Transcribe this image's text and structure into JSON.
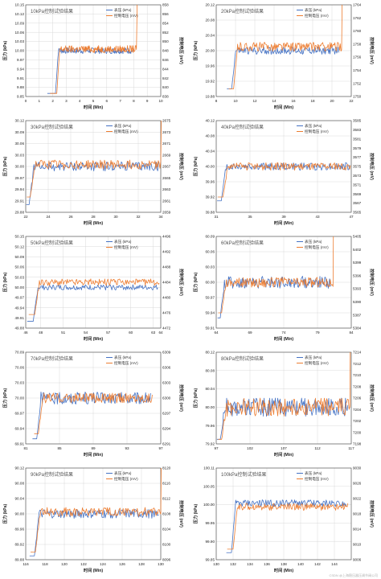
{
  "colors": {
    "pressure": "#4472C4",
    "voltage": "#ED7D31",
    "grid": "#d9d9d9",
    "axis": "#444444"
  },
  "watermark": "CSDN @上海稳压器压调节阀公司",
  "chart_data": [
    {
      "type": "line",
      "title": "10kPa控制试验结果",
      "xlabel": "时间 (Min)",
      "ylabel": "压力 (kPa)",
      "y2label": "控制电压 (mV)",
      "xlim": [
        0,
        10
      ],
      "ylim": [
        9.85,
        10.15
      ],
      "y2lim": [
        838,
        858
      ],
      "xticks": [
        0,
        1,
        2,
        3,
        4,
        5,
        6,
        7,
        8,
        9,
        10
      ],
      "yticks": [
        "9.85",
        "9.88",
        "9.91",
        "9.94",
        "9.97",
        "10.00",
        "10.03",
        "10.06",
        "10.09",
        "10.12",
        "10.15"
      ],
      "y2ticks": [
        "838",
        "840",
        "842",
        "844",
        "846",
        "848",
        "850",
        "852",
        "854",
        "856",
        "858"
      ],
      "legend": [
        "表压 (kPa)",
        "控制电压 (mV)"
      ],
      "grid": true,
      "series": [
        {
          "name": "表压 (kPa)",
          "start": [
            1.6,
            9.86
          ],
          "settle": [
            2.2,
            10.0
          ],
          "end": 8.0,
          "level": 10.0,
          "noise": 0.01
        },
        {
          "name": "控制电压 (mV)",
          "start": [
            1.8,
            9.86
          ],
          "settle": [
            2.3,
            10.0
          ],
          "end": 8.2,
          "level": 10.005,
          "noise": 0.012,
          "spike": true
        }
      ]
    },
    {
      "type": "line",
      "title": "20kPa控制试验结果",
      "xlabel": "时间 (Min)",
      "ylabel": "压力 (kPa)",
      "y2label": "控制电压 (mV)",
      "xlim": [
        8,
        22
      ],
      "ylim": [
        19.88,
        20.12
      ],
      "y2lim": [
        1750,
        1764
      ],
      "xticks": [
        8,
        10,
        12,
        14,
        16,
        18,
        20,
        22
      ],
      "yticks": [
        "19.88",
        "19.92",
        "19.96",
        "20.00",
        "20.04",
        "20.08",
        "20.12"
      ],
      "y2ticks": [
        "1750",
        "1752",
        "1754",
        "1756",
        "1758",
        "1760",
        "1762",
        "1764"
      ],
      "legend": [
        "表压 (kPa)",
        "控制电压 (mV)"
      ],
      "grid": true,
      "series": [
        {
          "name": "表压 (kPa)",
          "start": [
            9.1,
            19.9
          ],
          "settle": [
            9.6,
            20.0
          ],
          "end": 20.7,
          "level": 20.0,
          "noise": 0.01
        },
        {
          "name": "控制电压 (mV)",
          "start": [
            9.3,
            19.9
          ],
          "settle": [
            9.8,
            20.0
          ],
          "end": 21.0,
          "level": 20.01,
          "noise": 0.012,
          "spike": true
        }
      ]
    },
    {
      "type": "line",
      "title": "30kPa控制试验结果",
      "xlabel": "时间 (Min)",
      "ylabel": "压力 (kPa)",
      "y2label": "控制电压 (mV)",
      "xlim": [
        22,
        34
      ],
      "ylim": [
        29.88,
        30.12
      ],
      "y2lim": [
        2659,
        2675
      ],
      "xticks": [
        22,
        24,
        26,
        28,
        30,
        32,
        34
      ],
      "yticks": [
        "29.88",
        "29.91",
        "29.94",
        "29.97",
        "30.00",
        "30.03",
        "30.06",
        "30.09",
        "30.12"
      ],
      "y2ticks": [
        "2659",
        "2661",
        "2663",
        "2665",
        "2667",
        "2669",
        "2671",
        "2673",
        "2675"
      ],
      "legend": [
        "表压 (kPa)",
        "控制电压 (mV)"
      ],
      "grid": true,
      "series": [
        {
          "name": "表压 (kPa)",
          "start": [
            22.05,
            29.9
          ],
          "settle": [
            22.3,
            30.0
          ],
          "end": 33.8,
          "level": 30.0,
          "noise": 0.012
        },
        {
          "name": "控制电压 (mV)",
          "start": [
            22.1,
            29.92
          ],
          "settle": [
            22.4,
            30.0
          ],
          "end": 34.0,
          "level": 30.005,
          "noise": 0.012,
          "spike": true
        }
      ]
    },
    {
      "type": "line",
      "title": "40kPa控制试验结果",
      "xlabel": "时间 (Min)",
      "ylabel": "压力 (kPa)",
      "y2label": "控制电压 (mV)",
      "xlim": [
        31,
        47
      ],
      "ylim": [
        39.88,
        40.12
      ],
      "y2lim": [
        3565,
        3585
      ],
      "xticks": [
        31,
        35,
        39,
        43,
        47
      ],
      "yticks": [
        "39.88",
        "39.92",
        "39.96",
        "40.00",
        "40.04",
        "40.08",
        "40.12"
      ],
      "y2ticks": [
        "3565",
        "3567",
        "3569",
        "3571",
        "3573",
        "3575",
        "3577",
        "3579",
        "3581",
        "3583",
        "3585"
      ],
      "legend": [
        "表压 (kPa)",
        "控制电压 (mV)"
      ],
      "grid": true,
      "series": [
        {
          "name": "表压 (kPa)",
          "start": [
            31.1,
            39.91
          ],
          "settle": [
            31.6,
            40.0
          ],
          "end": 46.8,
          "level": 40.0,
          "noise": 0.01
        },
        {
          "name": "控制电压 (mV)",
          "start": [
            31.2,
            39.92
          ],
          "settle": [
            31.8,
            40.0
          ],
          "end": 46.9,
          "level": 40.0,
          "noise": 0.01,
          "spike": false
        }
      ]
    },
    {
      "type": "line",
      "title": "50kPa控制试验结果",
      "xlabel": "时间 (Min)",
      "ylabel": "压力 (kPa)",
      "y2label": "控制电压 (mV)",
      "xlim": [
        46,
        64
      ],
      "ylim": [
        49.88,
        50.15
      ],
      "y2lim": [
        4472,
        4496
      ],
      "xticks": [
        46,
        48,
        51,
        54,
        57,
        60,
        63,
        64
      ],
      "yticks": [
        "49.88",
        "49.91",
        "49.94",
        "49.97",
        "50.00",
        "50.03",
        "50.06",
        "50.09",
        "50.12",
        "50.15"
      ],
      "y2ticks": [
        "4472",
        "4476",
        "4480",
        "4484",
        "4488",
        "4492",
        "4496"
      ],
      "legend": [
        "表压 (kPa)",
        "控制电压 (mV)"
      ],
      "grid": true,
      "series": [
        {
          "name": "表压 (kPa)",
          "start": [
            46.2,
            49.9
          ],
          "settle": [
            47.0,
            50.0
          ],
          "end": 63.6,
          "level": 50.0,
          "noise": 0.008
        },
        {
          "name": "控制电压 (mV)",
          "start": [
            46.4,
            49.92
          ],
          "settle": [
            47.2,
            50.0
          ],
          "end": 63.8,
          "level": 50.015,
          "noise": 0.01,
          "spike": false
        }
      ]
    },
    {
      "type": "line",
      "title": "60kPa控制试验结果",
      "xlabel": "时间 (Min)",
      "ylabel": "压力 (kPa)",
      "y2label": "控制电压 (mV)",
      "xlim": [
        64,
        84
      ],
      "ylim": [
        59.91,
        60.09
      ],
      "y2lim": [
        5384,
        5406
      ],
      "xticks": [
        64,
        69,
        74,
        79,
        84
      ],
      "yticks": [
        "59.91",
        "59.94",
        "59.97",
        "60.00",
        "60.03",
        "60.06",
        "60.09"
      ],
      "y2ticks": [
        "5384",
        "5387",
        "5390",
        "5393",
        "5396",
        "5399",
        "5402",
        "5405"
      ],
      "legend": [
        "表压 (kPa)",
        "控制电压 (mV)"
      ],
      "grid": true,
      "series": [
        {
          "name": "表压 (kPa)",
          "start": [
            64.2,
            59.93
          ],
          "settle": [
            64.6,
            60.0
          ],
          "end": 81.0,
          "level": 60.0,
          "noise": 0.012
        },
        {
          "name": "控制电压 (mV)",
          "start": [
            64.3,
            59.94
          ],
          "settle": [
            64.8,
            60.0
          ],
          "end": 81.3,
          "level": 60.0,
          "noise": 0.01,
          "spike": true
        }
      ]
    },
    {
      "type": "line",
      "title": "70kPa控制试验结果",
      "xlabel": "时间 (Min)",
      "ylabel": "压力 (kPa)",
      "y2label": "控制电压 (mV)",
      "xlim": [
        81,
        97
      ],
      "ylim": [
        69.91,
        70.09
      ],
      "y2lim": [
        6291,
        6309
      ],
      "xticks": [
        81,
        85,
        89,
        93,
        97
      ],
      "yticks": [
        "69.91",
        "69.94",
        "69.97",
        "70.00",
        "70.03",
        "70.06",
        "70.09"
      ],
      "y2ticks": [
        "6291",
        "6294",
        "6297",
        "6300",
        "6303",
        "6306",
        "6309"
      ],
      "legend": [
        "表压 (kPa)",
        "控制电压 (mV)"
      ],
      "grid": true,
      "series": [
        {
          "name": "表压 (kPa)",
          "start": [
            81.8,
            69.92
          ],
          "settle": [
            82.3,
            70.0
          ],
          "end": 95.8,
          "level": 70.0,
          "noise": 0.012
        },
        {
          "name": "控制电压 (mV)",
          "start": [
            82.0,
            69.93
          ],
          "settle": [
            82.5,
            70.0
          ],
          "end": 96.0,
          "level": 70.0,
          "noise": 0.01,
          "spike": false
        }
      ]
    },
    {
      "type": "line",
      "title": "80kPa控制试验结果",
      "xlabel": "时间 (Min)",
      "ylabel": "压力 (kPa)",
      "y2label": "控制电压 (mV)",
      "xlim": [
        97,
        117
      ],
      "ylim": [
        79.92,
        80.12
      ],
      "y2lim": [
        7198,
        7214
      ],
      "xticks": [
        97,
        102,
        107,
        112,
        117
      ],
      "yticks": [
        "79.92",
        "79.96",
        "80.00",
        "80.04",
        "80.08",
        "80.12"
      ],
      "y2ticks": [
        "7198",
        "7200",
        "7202",
        "7204",
        "7206",
        "7208",
        "7210",
        "7212",
        "7214"
      ],
      "legend": [
        "表压 (kPa)",
        "控制电压 (mV)"
      ],
      "grid": true,
      "series": [
        {
          "name": "表压 (kPa)",
          "start": [
            97.1,
            79.93
          ],
          "settle": [
            97.6,
            80.0
          ],
          "end": 116.5,
          "level": 80.0,
          "noise": 0.02
        },
        {
          "name": "控制电压 (mV)",
          "start": [
            97.3,
            79.93
          ],
          "settle": [
            97.8,
            80.0
          ],
          "end": 116.8,
          "level": 80.0,
          "noise": 0.02,
          "spike": true
        }
      ]
    },
    {
      "type": "line",
      "title": "90kPa控制试验结果",
      "xlabel": "时间 (Min)",
      "ylabel": "压力 (kPa)",
      "y2label": "控制电压 (mV)",
      "xlim": [
        116,
        130
      ],
      "ylim": [
        89.88,
        90.12
      ],
      "y2lim": [
        8096,
        8120
      ],
      "xticks": [
        116,
        118,
        120,
        122,
        124,
        126,
        128,
        130
      ],
      "yticks": [
        "89.88",
        "89.92",
        "89.96",
        "90.00",
        "90.04",
        "90.08",
        "90.12"
      ],
      "y2ticks": [
        "8096",
        "8100",
        "8104",
        "8108",
        "8112",
        "8116",
        "8120"
      ],
      "legend": [
        "表压 (kPa)",
        "控制电压 (mV)"
      ],
      "grid": true,
      "series": [
        {
          "name": "表压 (kPa)",
          "start": [
            116.4,
            89.89
          ],
          "settle": [
            116.9,
            90.0
          ],
          "end": 129.8,
          "level": 90.0,
          "noise": 0.012
        },
        {
          "name": "控制电压 (mV)",
          "start": [
            116.5,
            89.9
          ],
          "settle": [
            117.0,
            90.0
          ],
          "end": 130.0,
          "level": 90.005,
          "noise": 0.012,
          "spike": true
        }
      ]
    },
    {
      "type": "line",
      "title": "100kPa控制试验结果",
      "xlabel": "时间 (Min)",
      "ylabel": "压力 (kPa)",
      "y2label": "控制电压 (mV)",
      "xlim": [
        130,
        146
      ],
      "ylim": [
        99.85,
        100.11
      ],
      "y2lim": [
        9006,
        9030
      ],
      "xticks": [
        130,
        132,
        134,
        136,
        138,
        140,
        142,
        144
      ],
      "yticks": [
        "99.85",
        "99.90",
        "99.95",
        "100.00",
        "100.05",
        "100.11"
      ],
      "y2ticks": [
        "9006",
        "9010",
        "9014",
        "9018",
        "9022",
        "9026",
        "9030"
      ],
      "legend": [
        "表压 (kPa)",
        "控制电压 (mV)"
      ],
      "grid": true,
      "series": [
        {
          "name": "表压 (kPa)",
          "start": [
            131.2,
            99.87
          ],
          "settle": [
            131.8,
            100.0
          ],
          "end": 145.4,
          "level": 100.01,
          "noise": 0.01
        },
        {
          "name": "控制电压 (mV)",
          "start": [
            131.3,
            99.88
          ],
          "settle": [
            132.0,
            100.0
          ],
          "end": 145.6,
          "level": 100.0,
          "noise": 0.01,
          "spike": false
        }
      ]
    }
  ]
}
